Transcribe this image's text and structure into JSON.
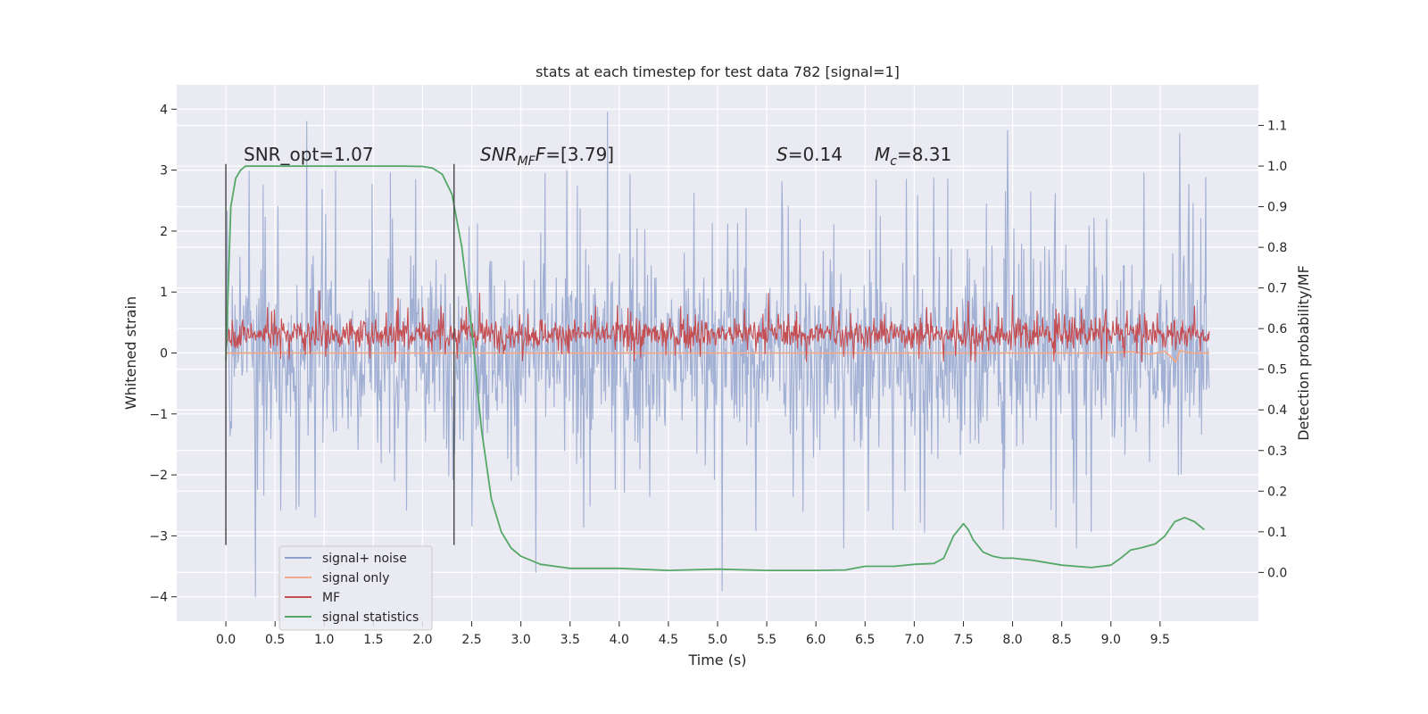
{
  "chart_data": {
    "type": "line",
    "title": "stats at each timestep for test data 782 [signal=1]",
    "xlabel": "Time (s)",
    "ylabel": "Whitened strain",
    "y2label": "Detection probability/MF",
    "xlim": [
      -0.5,
      10.5
    ],
    "ylim": [
      -4.4,
      4.4
    ],
    "y2lim": [
      -0.12,
      1.2
    ],
    "x_ticks": [
      0.0,
      0.5,
      1.0,
      1.5,
      2.0,
      2.5,
      3.0,
      3.5,
      4.0,
      4.5,
      5.0,
      5.5,
      6.0,
      6.5,
      7.0,
      7.5,
      8.0,
      8.5,
      9.0,
      9.5
    ],
    "x_tick_labels": [
      "0.0",
      "0.5",
      "1.0",
      "1.5",
      "2.0",
      "2.5",
      "3.0",
      "3.5",
      "4.0",
      "4.5",
      "5.0",
      "5.5",
      "6.0",
      "6.5",
      "7.0",
      "7.5",
      "8.0",
      "8.5",
      "9.0",
      "9.5"
    ],
    "y_ticks": [
      -4,
      -3,
      -2,
      -1,
      0,
      1,
      2,
      3,
      4
    ],
    "y_tick_labels": [
      "−4",
      "−3",
      "−2",
      "−1",
      "0",
      "1",
      "2",
      "3",
      "4"
    ],
    "y2_ticks": [
      0.0,
      0.1,
      0.2,
      0.3,
      0.4,
      0.5,
      0.6,
      0.7,
      0.8,
      0.9,
      1.0,
      1.1
    ],
    "y2_tick_labels": [
      "0.0",
      "0.1",
      "0.2",
      "0.3",
      "0.4",
      "0.5",
      "0.6",
      "0.7",
      "0.8",
      "0.9",
      "1.0",
      "1.1"
    ],
    "grid": true,
    "legend_position": "lower-left",
    "legend": [
      {
        "label": "signal+ noise",
        "color": "#8da0cb"
      },
      {
        "label": "signal only",
        "color": "#f1a98a"
      },
      {
        "label": "MF",
        "color": "#c44e52"
      },
      {
        "label": "signal statistics",
        "color": "#55a868"
      }
    ],
    "annotations": {
      "snr_opt": "SNR_opt=1.07",
      "snr_mf_prefix": "SNR",
      "snr_mf_sub": "MF",
      "snr_mf_value": "=[3.79]",
      "s_sym": "S",
      "s_value": "=0.14",
      "mc_sym": "M",
      "mc_sub": "c",
      "mc_value": "=8.31"
    },
    "vertical_markers_x": [
      0.0,
      2.32
    ],
    "series": [
      {
        "name": "signal+ noise",
        "axis": "left",
        "color": "#8da0cb",
        "kind": "noise",
        "x_range": [
          0.0,
          10.0
        ],
        "sample_count": 1400,
        "typical_band": [
          -2.0,
          2.0
        ],
        "peaks": [
          {
            "x": 0.82,
            "y": 3.8
          },
          {
            "x": 3.88,
            "y": 3.95
          },
          {
            "x": 7.95,
            "y": 3.65
          },
          {
            "x": 9.7,
            "y": 3.6
          },
          {
            "x": 0.3,
            "y": -4.0
          },
          {
            "x": 5.05,
            "y": -3.9
          },
          {
            "x": 3.15,
            "y": -3.6
          },
          {
            "x": 6.28,
            "y": -3.2
          },
          {
            "x": 8.65,
            "y": -3.2
          }
        ]
      },
      {
        "name": "signal only",
        "axis": "left",
        "color": "#f1a98a",
        "kind": "line",
        "x": [
          0.0,
          8.9,
          9.2,
          9.4,
          9.55,
          9.62,
          9.66,
          9.7,
          9.8,
          10.0
        ],
        "y": [
          0.0,
          0.0,
          0.02,
          -0.02,
          0.03,
          -0.08,
          -0.15,
          0.04,
          0.0,
          0.0
        ]
      },
      {
        "name": "MF",
        "axis": "left",
        "color": "#c44e52",
        "kind": "noise",
        "x_range": [
          0.0,
          10.0
        ],
        "sample_count": 1400,
        "typical_band": [
          0.0,
          0.62
        ],
        "peaks": [
          {
            "x": 0.95,
            "y": 1.02
          },
          {
            "x": 2.58,
            "y": 0.98
          },
          {
            "x": 5.52,
            "y": 0.98
          },
          {
            "x": 8.0,
            "y": 0.95
          },
          {
            "x": 1.75,
            "y": 0.9
          },
          {
            "x": 7.55,
            "y": 0.85
          }
        ]
      },
      {
        "name": "signal statistics",
        "axis": "right",
        "color": "#55a868",
        "kind": "line",
        "x": [
          0.0,
          0.05,
          0.1,
          0.15,
          0.2,
          0.3,
          0.5,
          1.0,
          1.5,
          1.8,
          2.0,
          2.1,
          2.2,
          2.3,
          2.4,
          2.5,
          2.6,
          2.7,
          2.8,
          2.9,
          3.0,
          3.2,
          3.5,
          4.0,
          4.5,
          5.0,
          5.5,
          6.0,
          6.3,
          6.5,
          6.8,
          7.0,
          7.2,
          7.3,
          7.4,
          7.5,
          7.55,
          7.6,
          7.7,
          7.8,
          7.9,
          8.0,
          8.2,
          8.5,
          8.8,
          9.0,
          9.1,
          9.2,
          9.3,
          9.45,
          9.55,
          9.65,
          9.75,
          9.85,
          9.95
        ],
        "y": [
          0.52,
          0.9,
          0.97,
          0.99,
          1.0,
          1.0,
          1.0,
          1.0,
          1.0,
          1.0,
          0.999,
          0.995,
          0.98,
          0.93,
          0.8,
          0.6,
          0.35,
          0.18,
          0.1,
          0.06,
          0.04,
          0.02,
          0.01,
          0.01,
          0.005,
          0.008,
          0.005,
          0.005,
          0.006,
          0.015,
          0.015,
          0.02,
          0.022,
          0.035,
          0.09,
          0.12,
          0.105,
          0.08,
          0.05,
          0.04,
          0.035,
          0.035,
          0.03,
          0.018,
          0.012,
          0.018,
          0.035,
          0.055,
          0.06,
          0.07,
          0.09,
          0.125,
          0.135,
          0.125,
          0.105
        ]
      }
    ]
  }
}
